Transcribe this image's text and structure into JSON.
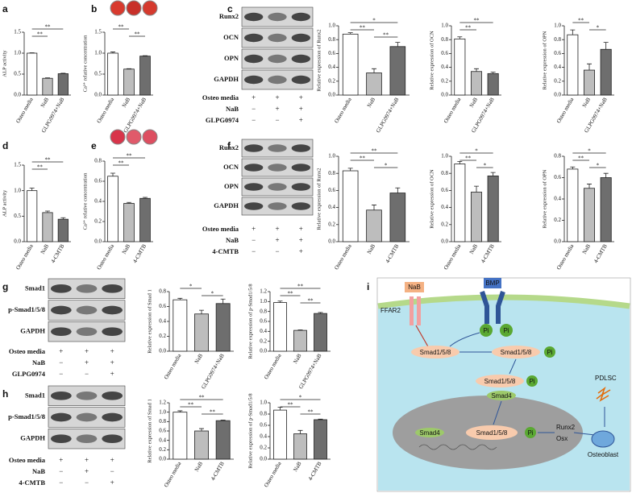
{
  "panels": [
    "a",
    "b",
    "c",
    "d",
    "e",
    "f",
    "g",
    "h",
    "i"
  ],
  "chart_data": [
    {
      "type": "bar",
      "ylabel": "ALP activity",
      "categories": [
        "Osteo media",
        "NaB",
        "GLPG0974+NaB"
      ],
      "values": [
        1.0,
        0.4,
        0.51
      ],
      "errors": [
        0.01,
        0.01,
        0.01
      ],
      "colors": [
        "#ffffff",
        "#bdbdbd",
        "#6e6e6e"
      ],
      "ylim": [
        0,
        1.5
      ],
      "yticks": [
        {
          "value": 0,
          "label": "0.0"
        },
        0.5,
        {
          "value": 1,
          "label": "1.0"
        },
        1.5
      ],
      "significance": [
        {
          "text": "**",
          "from": "Osteo media",
          "to": "GLPG0974+NaB"
        },
        {
          "text": "**",
          "from": "Osteo media",
          "to": "NaB"
        }
      ]
    },
    {
      "type": "bar",
      "ylabel": "Ca²⁺ relative concentration",
      "categories": [
        "Osteo media",
        "NaB",
        "GLPG0974+NaB"
      ],
      "values": [
        1.0,
        0.62,
        0.93
      ],
      "errors": [
        0.03,
        0.01,
        0.01
      ],
      "colors": [
        "#ffffff",
        "#bdbdbd",
        "#6e6e6e"
      ],
      "ylim": [
        0,
        1.5
      ],
      "yticks": [
        {
          "value": 0,
          "label": "0.0"
        },
        0.5,
        {
          "value": 1,
          "label": "1.0"
        },
        1.5
      ],
      "significance": [
        {
          "text": "**",
          "from": "Osteo media",
          "to": "NaB"
        },
        {
          "text": "**",
          "from": "NaB",
          "to": "GLPG0974+NaB"
        }
      ]
    },
    {
      "type": "bar",
      "ylabel": "Relative expression of Runx2",
      "categories": [
        "Osteo media",
        "NaB",
        "GLPG0974+NaB"
      ],
      "values": [
        0.88,
        0.32,
        0.7
      ],
      "errors": [
        0.02,
        0.06,
        0.06
      ],
      "colors": [
        "#ffffff",
        "#bdbdbd",
        "#6e6e6e"
      ],
      "ylim": [
        0,
        1
      ],
      "yticks": [
        {
          "value": 0,
          "label": "0.0"
        },
        0.2,
        0.4,
        0.6,
        0.8,
        {
          "value": 1,
          "label": "1.0"
        }
      ],
      "significance": [
        {
          "text": "*",
          "from": "Osteo media",
          "to": "GLPG0974+NaB"
        },
        {
          "text": "**",
          "from": "Osteo media",
          "to": "NaB"
        },
        {
          "text": "**",
          "from": "NaB",
          "to": "GLPG0974+NaB"
        }
      ]
    },
    {
      "type": "bar",
      "ylabel": "Relative expression of OCN",
      "categories": [
        "Osteo media",
        "NaB",
        "GLPG0974+NaB"
      ],
      "values": [
        0.81,
        0.34,
        0.31
      ],
      "errors": [
        0.03,
        0.04,
        0.02
      ],
      "colors": [
        "#ffffff",
        "#bdbdbd",
        "#6e6e6e"
      ],
      "ylim": [
        0,
        1
      ],
      "yticks": [
        {
          "value": 0,
          "label": "0.0"
        },
        0.2,
        0.4,
        0.6,
        0.8,
        {
          "value": 1,
          "label": "1.0"
        }
      ],
      "significance": [
        {
          "text": "**",
          "from": "Osteo media",
          "to": "GLPG0974+NaB"
        },
        {
          "text": "**",
          "from": "Osteo media",
          "to": "NaB"
        }
      ]
    },
    {
      "type": "bar",
      "ylabel": "Relative expression of OPN",
      "categories": [
        "Osteo media",
        "NaB",
        "GLPG0974+NaB"
      ],
      "values": [
        0.87,
        0.36,
        0.66
      ],
      "errors": [
        0.07,
        0.09,
        0.1
      ],
      "colors": [
        "#ffffff",
        "#bdbdbd",
        "#6e6e6e"
      ],
      "ylim": [
        0,
        1
      ],
      "yticks": [
        {
          "value": 0,
          "label": "0.0"
        },
        0.2,
        0.4,
        0.6,
        0.8,
        {
          "value": 1,
          "label": "1.0"
        }
      ],
      "significance": [
        {
          "text": "**",
          "from": "Osteo media",
          "to": "NaB"
        },
        {
          "text": "*",
          "from": "NaB",
          "to": "GLPG0974+NaB"
        }
      ]
    },
    {
      "type": "bar",
      "ylabel": "ALP activity",
      "categories": [
        "Osteo media",
        "NaB",
        "4-CMTB"
      ],
      "values": [
        1.0,
        0.57,
        0.44
      ],
      "errors": [
        0.05,
        0.03,
        0.03
      ],
      "colors": [
        "#ffffff",
        "#bdbdbd",
        "#6e6e6e"
      ],
      "ylim": [
        0,
        1.5
      ],
      "yticks": [
        {
          "value": 0,
          "label": "0.0"
        },
        0.5,
        {
          "value": 1,
          "label": "1.0"
        },
        1.5
      ],
      "significance": [
        {
          "text": "**",
          "from": "Osteo media",
          "to": "4-CMTB"
        },
        {
          "text": "**",
          "from": "Osteo media",
          "to": "NaB"
        }
      ]
    },
    {
      "type": "bar",
      "ylabel": "Ca²⁺ relative concentration",
      "categories": [
        "Osteo media",
        "NaB",
        "4-CMTB"
      ],
      "values": [
        0.65,
        0.38,
        0.43
      ],
      "errors": [
        0.03,
        0.01,
        0.01
      ],
      "colors": [
        "#ffffff",
        "#bdbdbd",
        "#6e6e6e"
      ],
      "ylim": [
        0,
        0.8
      ],
      "yticks": [
        {
          "value": 0,
          "label": "0.0"
        },
        0.2,
        0.4,
        0.6,
        0.8
      ],
      "significance": [
        {
          "text": "**",
          "from": "Osteo media",
          "to": "4-CMTB"
        },
        {
          "text": "**",
          "from": "Osteo media",
          "to": "NaB"
        }
      ]
    },
    {
      "type": "bar",
      "ylabel": "Relative expression of Runx2",
      "categories": [
        "Osteo media",
        "NaB",
        "4-CMTB"
      ],
      "values": [
        0.83,
        0.37,
        0.57
      ],
      "errors": [
        0.03,
        0.06,
        0.06
      ],
      "colors": [
        "#ffffff",
        "#bdbdbd",
        "#6e6e6e"
      ],
      "ylim": [
        0,
        1
      ],
      "yticks": [
        {
          "value": 0,
          "label": "0.0"
        },
        0.2,
        0.4,
        0.6,
        0.8,
        {
          "value": 1,
          "label": "1.0"
        }
      ],
      "significance": [
        {
          "text": "**",
          "from": "Osteo media",
          "to": "4-CMTB"
        },
        {
          "text": "**",
          "from": "Osteo media",
          "to": "NaB"
        },
        {
          "text": "*",
          "from": "NaB",
          "to": "4-CMTB"
        }
      ]
    },
    {
      "type": "bar",
      "ylabel": "Relative expression of OCN",
      "categories": [
        "Osteo media",
        "NaB",
        "4-CMTB"
      ],
      "values": [
        0.91,
        0.58,
        0.77
      ],
      "errors": [
        0.03,
        0.07,
        0.04
      ],
      "colors": [
        "#ffffff",
        "#bdbdbd",
        "#6e6e6e"
      ],
      "ylim": [
        0,
        1
      ],
      "yticks": [
        {
          "value": 0,
          "label": "0.0"
        },
        0.2,
        0.4,
        0.6,
        0.8,
        {
          "value": 1,
          "label": "1.0"
        }
      ],
      "significance": [
        {
          "text": "*",
          "from": "Osteo media",
          "to": "4-CMTB"
        },
        {
          "text": "**",
          "from": "Osteo media",
          "to": "NaB"
        },
        {
          "text": "*",
          "from": "NaB",
          "to": "4-CMTB"
        }
      ]
    },
    {
      "type": "bar",
      "ylabel": "Relative expression of OPN",
      "categories": [
        "Osteo media",
        "NaB",
        "4-CMTB"
      ],
      "values": [
        0.68,
        0.5,
        0.6
      ],
      "errors": [
        0.02,
        0.04,
        0.04
      ],
      "colors": [
        "#ffffff",
        "#bdbdbd",
        "#6e6e6e"
      ],
      "ylim": [
        0,
        0.8
      ],
      "yticks": [
        {
          "value": 0,
          "label": "0.0"
        },
        0.2,
        0.4,
        0.6,
        0.8
      ],
      "significance": [
        {
          "text": "*",
          "from": "Osteo media",
          "to": "4-CMTB"
        },
        {
          "text": "**",
          "from": "Osteo media",
          "to": "NaB"
        },
        {
          "text": "*",
          "from": "NaB",
          "to": "4-CMTB"
        }
      ]
    },
    {
      "type": "bar",
      "ylabel": "Relative expression of Smad 1",
      "categories": [
        "Osteo media",
        "NaB",
        "GLPG0974+NaB"
      ],
      "values": [
        0.69,
        0.5,
        0.64
      ],
      "errors": [
        0.02,
        0.05,
        0.06
      ],
      "colors": [
        "#ffffff",
        "#bdbdbd",
        "#6e6e6e"
      ],
      "ylim": [
        0,
        0.8
      ],
      "yticks": [
        {
          "value": 0,
          "label": "0.0"
        },
        0.2,
        0.4,
        0.6,
        0.8
      ],
      "significance": [
        {
          "text": "*",
          "from": "Osteo media",
          "to": "NaB"
        },
        {
          "text": "*",
          "from": "NaB",
          "to": "GLPG0974+NaB"
        }
      ]
    },
    {
      "type": "bar",
      "ylabel": "Relative expression of p-Smad1/5/8",
      "categories": [
        "Osteo media",
        "NaB",
        "GLPG0974+NaB"
      ],
      "values": [
        0.98,
        0.42,
        0.76
      ],
      "errors": [
        0.03,
        0.01,
        0.02
      ],
      "colors": [
        "#ffffff",
        "#bdbdbd",
        "#6e6e6e"
      ],
      "ylim": [
        0,
        1.2
      ],
      "yticks": [
        {
          "value": 0,
          "label": "0.0"
        },
        0.2,
        0.4,
        0.6,
        0.8,
        {
          "value": 1,
          "label": "1.0"
        },
        1.2
      ],
      "significance": [
        {
          "text": "**",
          "from": "Osteo media",
          "to": "GLPG0974+NaB"
        },
        {
          "text": "**",
          "from": "Osteo media",
          "to": "NaB"
        },
        {
          "text": "**",
          "from": "NaB",
          "to": "GLPG0974+NaB"
        }
      ]
    },
    {
      "type": "bar",
      "ylabel": "Relative expression of Smad 1",
      "categories": [
        "Osteo media",
        "NaB",
        "4-CMTB"
      ],
      "values": [
        1.0,
        0.6,
        0.82
      ],
      "errors": [
        0.03,
        0.05,
        0.01
      ],
      "colors": [
        "#ffffff",
        "#bdbdbd",
        "#6e6e6e"
      ],
      "ylim": [
        0,
        1.2
      ],
      "yticks": [
        {
          "value": 0,
          "label": "0.0"
        },
        0.2,
        0.4,
        0.6,
        0.8,
        {
          "value": 1,
          "label": "1.0"
        },
        1.2
      ],
      "significance": [
        {
          "text": "**",
          "from": "Osteo media",
          "to": "4-CMTB"
        },
        {
          "text": "**",
          "from": "Osteo media",
          "to": "NaB"
        },
        {
          "text": "**",
          "from": "NaB",
          "to": "4-CMTB"
        }
      ]
    },
    {
      "type": "bar",
      "ylabel": "Relative expression of p-Smad1/5/8",
      "categories": [
        "Osteo media",
        "NaB",
        "4-CMTB"
      ],
      "values": [
        0.87,
        0.45,
        0.7
      ],
      "errors": [
        0.05,
        0.06,
        0.01
      ],
      "colors": [
        "#ffffff",
        "#bdbdbd",
        "#6e6e6e"
      ],
      "ylim": [
        0,
        1
      ],
      "yticks": [
        {
          "value": 0,
          "label": "0.0"
        },
        0.2,
        0.4,
        0.6,
        0.8,
        {
          "value": 1,
          "label": "1.0"
        }
      ],
      "significance": [
        {
          "text": "*",
          "from": "Osteo media",
          "to": "4-CMTB"
        },
        {
          "text": "**",
          "from": "Osteo media",
          "to": "NaB"
        },
        {
          "text": "**",
          "from": "NaB",
          "to": "4-CMTB"
        }
      ]
    }
  ],
  "blots": [
    {
      "proteins": [
        "Runx2",
        "OCN",
        "OPN",
        "GAPDH"
      ],
      "treatments": [
        {
          "label": "Osteo media",
          "signs": [
            "+",
            "+",
            "+"
          ]
        },
        {
          "label": "NaB",
          "signs": [
            "−",
            "+",
            "+"
          ]
        },
        {
          "label": "GLPG0974",
          "signs": [
            "−",
            "−",
            "+"
          ]
        }
      ]
    },
    {
      "proteins": [
        "Runx2",
        "OCN",
        "OPN",
        "GAPDH"
      ],
      "treatments": [
        {
          "label": "Osteo media",
          "signs": [
            "+",
            "+",
            "+"
          ]
        },
        {
          "label": "NaB",
          "signs": [
            "−",
            "+",
            "+"
          ]
        },
        {
          "label": "4-CMTB",
          "signs": [
            "−",
            "−",
            "+"
          ]
        }
      ]
    },
    {
      "proteins": [
        "Smad1",
        "p-Smad1/5/8",
        "GAPDH"
      ],
      "treatments": [
        {
          "label": "Osteo media",
          "signs": [
            "+",
            "+",
            "+"
          ]
        },
        {
          "label": "NaB",
          "signs": [
            "−",
            "+",
            "+"
          ]
        },
        {
          "label": "GLPG0974",
          "signs": [
            "−",
            "−",
            "+"
          ]
        }
      ]
    },
    {
      "proteins": [
        "Smad1",
        "p-Smad1/5/8",
        "GAPDH"
      ],
      "treatments": [
        {
          "label": "Osteo media",
          "signs": [
            "+",
            "+",
            "+"
          ]
        },
        {
          "label": "NaB",
          "signs": [
            "−",
            "+",
            "−"
          ]
        },
        {
          "label": "4-CMTB",
          "signs": [
            "−",
            "−",
            "+"
          ]
        }
      ]
    }
  ],
  "diagram": {
    "labels": [
      "NaB",
      "FFAR2",
      "BMP",
      "Pi",
      "Pi",
      "Smad1/5/8",
      "Smad1/5/8",
      "Pi",
      "Smad1/5/8",
      "Pi",
      "Smad4",
      "Smad4",
      "Smad1/5/8",
      "Pi",
      "Runx2",
      "Osx",
      "PDLSC",
      "Osteoblast"
    ]
  }
}
